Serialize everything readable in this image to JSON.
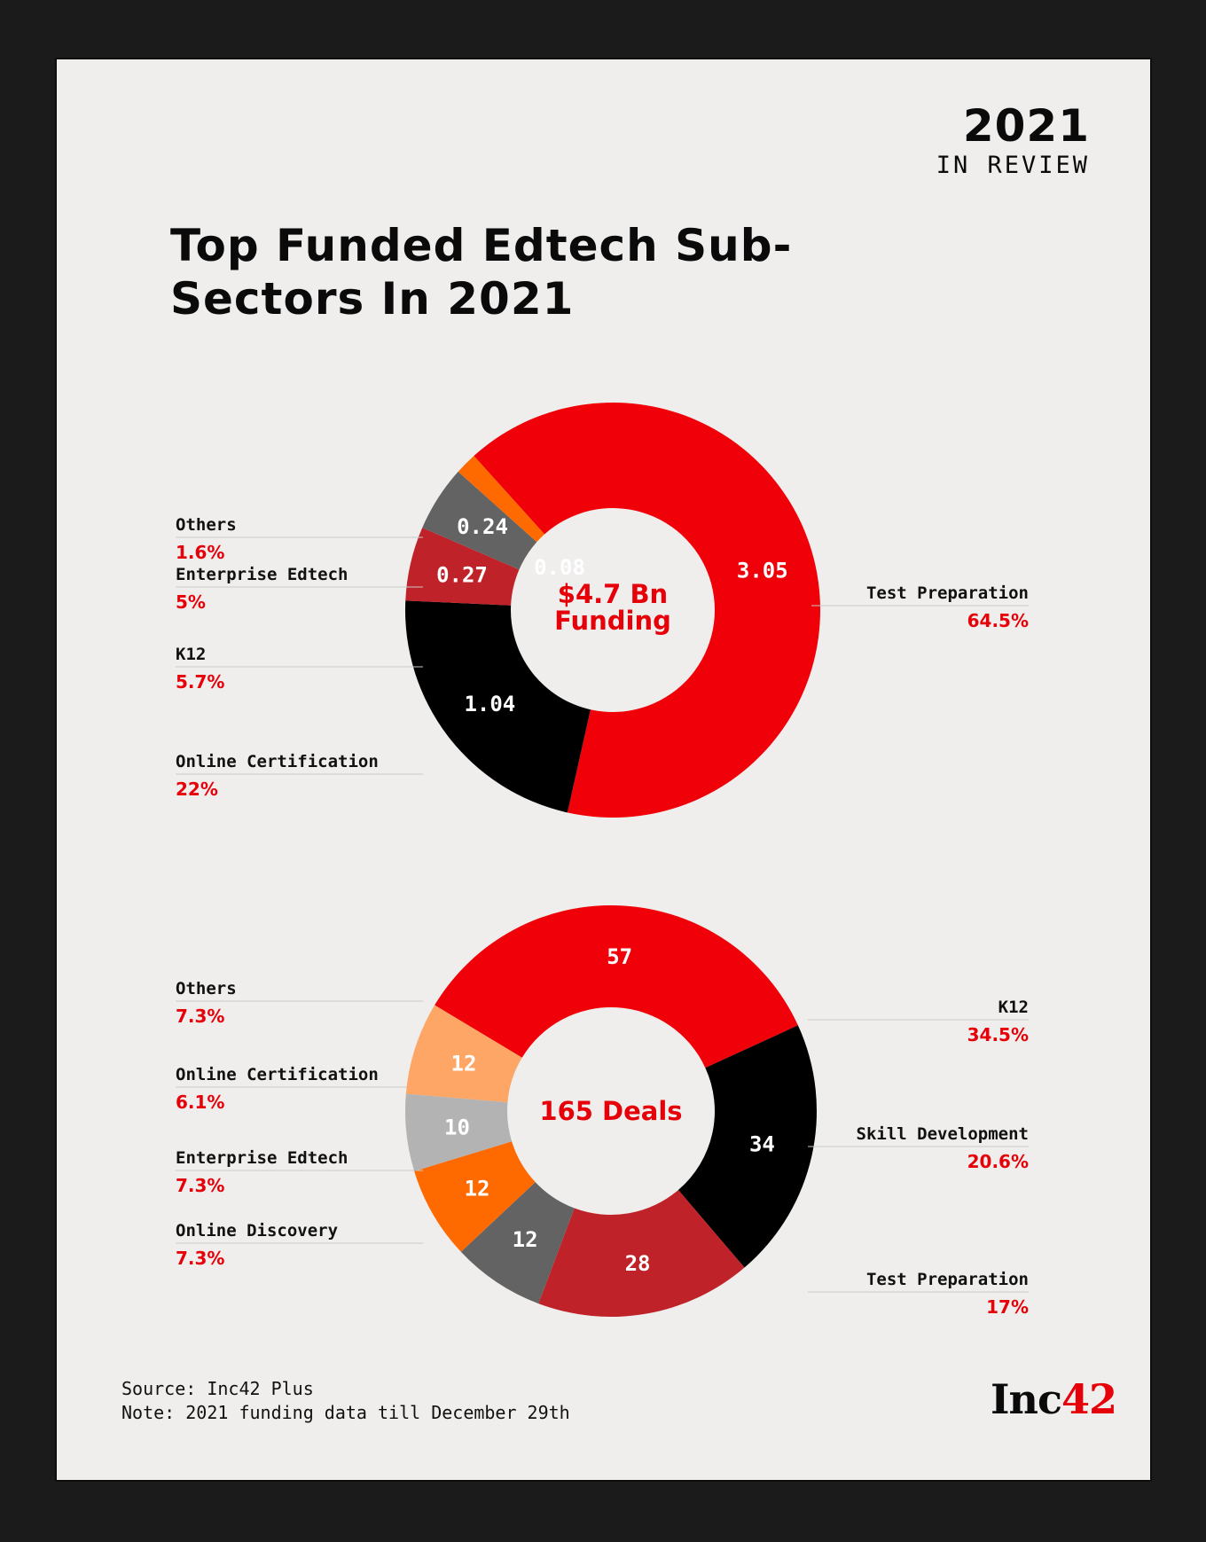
{
  "header": {
    "year": "2021",
    "subtitle": "IN REVIEW"
  },
  "title": "Top Funded Edtech Sub-Sectors In 2021",
  "footer": {
    "source": "Source: Inc42 Plus",
    "note": "Note: 2021 funding data till December 29th"
  },
  "logo": {
    "text": "Inc",
    "accent": "42"
  },
  "colors": {
    "red": "#f00008",
    "black": "#000000",
    "crimson": "#c02229",
    "darkgray": "#636363",
    "orange": "#ff6a00",
    "lightgray": "#b3b3b3",
    "peach": "#fea665",
    "label_red": "#e6000a"
  },
  "chart_data": [
    {
      "type": "pie",
      "center_label": [
        "$4.7 Bn",
        "Funding"
      ],
      "slices": [
        {
          "name": "Test Preparation",
          "value": 3.05,
          "value_label": "3.05",
          "percent": "64.5%",
          "color": "#f00008"
        },
        {
          "name": "Online Certification",
          "value": 1.04,
          "value_label": "1.04",
          "percent": "22%",
          "color": "#000000"
        },
        {
          "name": "K12",
          "value": 0.27,
          "value_label": "0.27",
          "percent": "5.7%",
          "color": "#c02229"
        },
        {
          "name": "Enterprise Edtech",
          "value": 0.24,
          "value_label": "0.24",
          "percent": "5%",
          "color": "#636363"
        },
        {
          "name": "Others",
          "value": 0.08,
          "value_label": "0.08",
          "percent": "1.6%",
          "color": "#ff6a00"
        }
      ]
    },
    {
      "type": "pie",
      "center_label": [
        "165 Deals"
      ],
      "slices": [
        {
          "name": "K12",
          "value": 57,
          "value_label": "57",
          "percent": "34.5%",
          "color": "#f00008"
        },
        {
          "name": "Skill Development",
          "value": 34,
          "value_label": "34",
          "percent": "20.6%",
          "color": "#000000"
        },
        {
          "name": "Test Preparation",
          "value": 28,
          "value_label": "28",
          "percent": "17%",
          "color": "#c02229"
        },
        {
          "name": "Online Discovery",
          "value": 12,
          "value_label": "12",
          "percent": "7.3%",
          "color": "#636363"
        },
        {
          "name": "Enterprise Edtech",
          "value": 12,
          "value_label": "12",
          "percent": "7.3%",
          "color": "#ff6a00"
        },
        {
          "name": "Online Certification",
          "value": 10,
          "value_label": "10",
          "percent": "6.1%",
          "color": "#b3b3b3"
        },
        {
          "name": "Others",
          "value": 12,
          "value_label": "12",
          "percent": "7.3%",
          "color": "#fea665"
        }
      ]
    }
  ]
}
